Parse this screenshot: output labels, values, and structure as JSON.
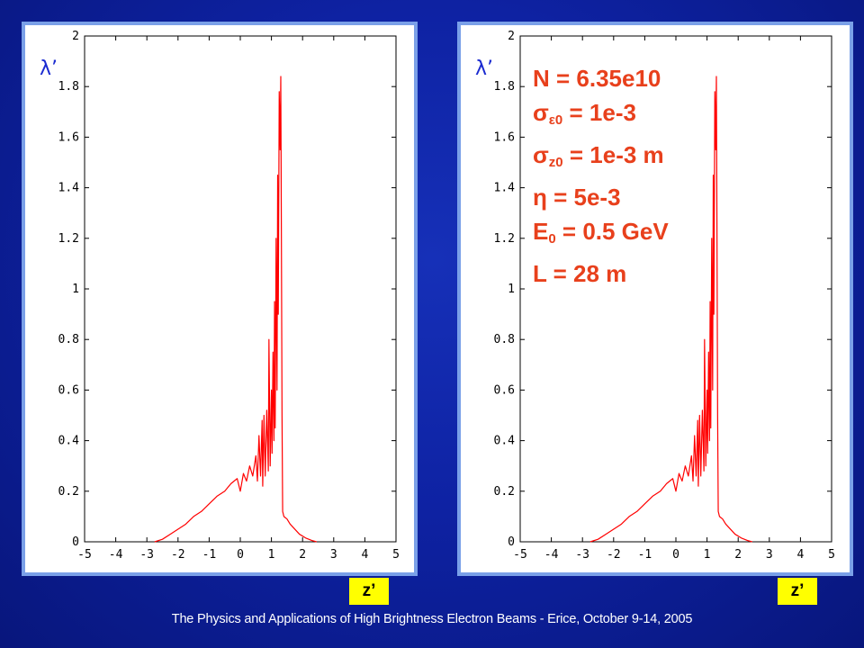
{
  "chart_data": [
    {
      "type": "line",
      "color": "#ff0000",
      "ylabel": "λ’",
      "xlabel": "z’",
      "xlim": [
        -5,
        5
      ],
      "ylim": [
        0,
        2
      ],
      "xticks": [
        "-5",
        "-4",
        "-3",
        "-2",
        "-1",
        "0",
        "1",
        "2",
        "3",
        "4",
        "5"
      ],
      "yticks": [
        "0",
        "0.2",
        "0.4",
        "0.6",
        "0.8",
        "1",
        "1.2",
        "1.4",
        "1.6",
        "1.8",
        "2"
      ],
      "x": [
        -2.75,
        -2.5,
        -2.25,
        -2.0,
        -1.75,
        -1.5,
        -1.25,
        -1.0,
        -0.75,
        -0.5,
        -0.3,
        -0.1,
        0.0,
        0.1,
        0.2,
        0.3,
        0.4,
        0.5,
        0.55,
        0.6,
        0.65,
        0.7,
        0.72,
        0.76,
        0.8,
        0.85,
        0.9,
        0.92,
        0.96,
        1.0,
        1.02,
        1.05,
        1.08,
        1.1,
        1.12,
        1.15,
        1.18,
        1.2,
        1.22,
        1.25,
        1.28,
        1.3,
        1.32,
        1.34,
        1.36,
        1.4,
        1.5,
        1.6,
        1.75,
        1.9,
        2.1,
        2.3,
        2.45
      ],
      "y": [
        0.0,
        0.01,
        0.03,
        0.05,
        0.07,
        0.1,
        0.12,
        0.15,
        0.18,
        0.2,
        0.23,
        0.25,
        0.2,
        0.27,
        0.24,
        0.3,
        0.26,
        0.34,
        0.24,
        0.42,
        0.26,
        0.48,
        0.22,
        0.5,
        0.26,
        0.52,
        0.28,
        0.8,
        0.3,
        0.6,
        0.35,
        0.75,
        0.4,
        0.95,
        0.45,
        1.2,
        0.6,
        1.45,
        0.9,
        1.78,
        1.55,
        1.84,
        1.2,
        0.5,
        0.12,
        0.1,
        0.09,
        0.07,
        0.05,
        0.03,
        0.015,
        0.005,
        0.0
      ]
    },
    {
      "type": "line",
      "color": "#ff0000",
      "ylabel": "λ’",
      "xlabel": "z’",
      "xlim": [
        -5,
        5
      ],
      "ylim": [
        0,
        2
      ],
      "xticks": [
        "-5",
        "-4",
        "-3",
        "-2",
        "-1",
        "0",
        "1",
        "2",
        "3",
        "4",
        "5"
      ],
      "yticks": [
        "0",
        "0.2",
        "0.4",
        "0.6",
        "0.8",
        "1",
        "1.2",
        "1.4",
        "1.6",
        "1.8",
        "2"
      ],
      "x": [
        -2.75,
        -2.5,
        -2.25,
        -2.0,
        -1.75,
        -1.5,
        -1.25,
        -1.0,
        -0.75,
        -0.5,
        -0.3,
        -0.1,
        0.0,
        0.1,
        0.2,
        0.3,
        0.4,
        0.5,
        0.55,
        0.6,
        0.65,
        0.7,
        0.72,
        0.76,
        0.8,
        0.85,
        0.9,
        0.92,
        0.96,
        1.0,
        1.02,
        1.05,
        1.08,
        1.1,
        1.12,
        1.15,
        1.18,
        1.2,
        1.22,
        1.25,
        1.28,
        1.3,
        1.32,
        1.34,
        1.36,
        1.4,
        1.5,
        1.6,
        1.75,
        1.9,
        2.1,
        2.3,
        2.45
      ],
      "y": [
        0.0,
        0.01,
        0.03,
        0.05,
        0.07,
        0.1,
        0.12,
        0.15,
        0.18,
        0.2,
        0.23,
        0.25,
        0.2,
        0.27,
        0.24,
        0.3,
        0.26,
        0.34,
        0.24,
        0.42,
        0.26,
        0.48,
        0.22,
        0.5,
        0.26,
        0.52,
        0.28,
        0.8,
        0.3,
        0.6,
        0.35,
        0.75,
        0.4,
        0.95,
        0.45,
        1.2,
        0.6,
        1.45,
        0.9,
        1.78,
        1.55,
        1.84,
        1.2,
        0.5,
        0.12,
        0.1,
        0.09,
        0.07,
        0.05,
        0.03,
        0.015,
        0.005,
        0.0
      ]
    }
  ],
  "params": {
    "n": "N = 6.35e10",
    "sigma_eps_sym": "σ",
    "sigma_eps_sub": "ε0",
    "sigma_eps_val": " = 1e-3",
    "sigma_z_sym": "σ",
    "sigma_z_sub": "z0",
    "sigma_z_val": " = 1e-3 m",
    "eta": "η = 5e-3",
    "e0_sym": "E",
    "e0_sub": "0",
    "e0_val": " = 0.5 GeV",
    "l": "L = 28 m"
  },
  "footer": "The Physics and Applications of High Brightness Electron Beams - Erice, October 9-14, 2005",
  "colors": {
    "background": "#0e22a3",
    "panel_border": "#7aa0e8",
    "curve": "#ff0000",
    "params_text": "#e8401c",
    "label_box": "#ffff00"
  }
}
